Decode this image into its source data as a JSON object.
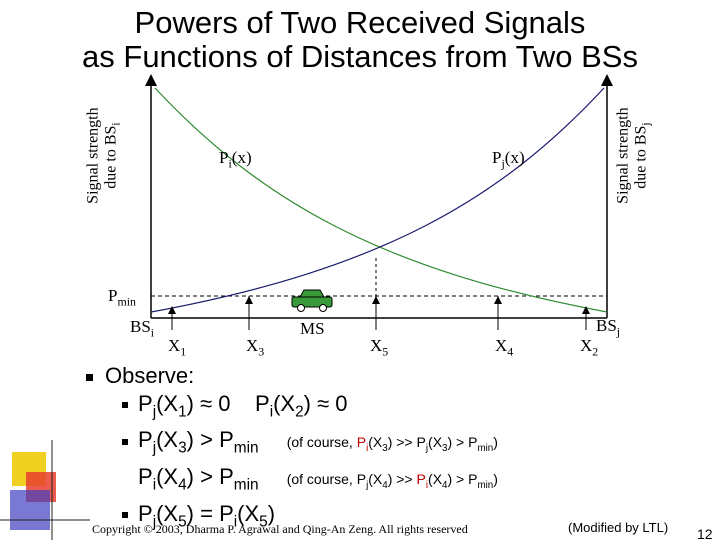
{
  "title_line1": "Powers of Two Received Signals",
  "title_line2": "as Functions of Distances from Two BSs",
  "left_axis_label_line1": "Signal strength",
  "left_axis_label_line2": "due to BS",
  "left_axis_label_sub": "i",
  "right_axis_label_line1": "Signal strength",
  "right_axis_label_line2": "due to BS",
  "right_axis_label_sub": "j",
  "curve_pi": "P",
  "curve_pi_sub": "i",
  "curve_pi_arg": "(x)",
  "curve_pj": "P",
  "curve_pj_sub": "j",
  "curve_pj_arg": "(x)",
  "pmin": "P",
  "pmin_sub": "min",
  "bsi": "BS",
  "bsi_sub": "i",
  "bsj": "BS",
  "bsj_sub": "j",
  "ms": "MS",
  "x1": "X",
  "x1_sub": "1",
  "x2": "X",
  "x2_sub": "2",
  "x3": "X",
  "x3_sub": "3",
  "x4": "X",
  "x4_sub": "4",
  "x5": "X",
  "x5_sub": "5",
  "observe": "Observe:",
  "b1_a": "P",
  "b1_a_sub": "j",
  "b1_b": "(X",
  "b1_b_sub": "1",
  "b1_c": ") ≈ 0",
  "b1_d": "P",
  "b1_d_sub": "i",
  "b1_e": "(X",
  "b1_e_sub": "2",
  "b1_f": ") ≈ 0",
  "b2_a": "P",
  "b2_a_sub": "j",
  "b2_b": "(X",
  "b2_b_sub": "3",
  "b2_c": ") > P",
  "b2_c_sub": "min",
  "b2_note": {
    "pre": "(of course, ",
    "p1": "P",
    "p1_sub": "i",
    "p1_x": "(X",
    "p1_xsub": "3",
    "mid": ") >> P",
    "p2_sub": "j",
    "p2_x": "(X",
    "p2_xsub": "3",
    "post": ") > P",
    "post_sub": "min",
    "end": ")"
  },
  "b3_a": "P",
  "b3_a_sub": "i",
  "b3_b": "(X",
  "b3_b_sub": "4",
  "b3_c": ") > P",
  "b3_c_sub": "min",
  "b3_note": {
    "pre": "(of course, ",
    "p1": "P",
    "p1_sub": "j",
    "p1_x": "(X",
    "p1_xsub": "4",
    "mid": ") >> ",
    "p2": "P",
    "p2_sub": "i",
    "p2_x": "(X",
    "p2_xsub": "4",
    "post": ") > P",
    "post_sub": "min",
    "end": ")"
  },
  "b4_a": "P",
  "b4_a_sub": "j",
  "b4_b": "(X",
  "b4_b_sub": "5",
  "b4_c": ") = P",
  "b4_d_sub": "i",
  "b4_e": "(X",
  "b4_e_sub": "5",
  "b4_f": ")",
  "footer": "Copyright © 2003, Dharma P. Agrawal and Qing-An Zeng. All rights reserved",
  "modified": "(Modified by LTL)",
  "page_number": "12",
  "colors": {
    "curve_i": "#2e8b2e",
    "curve_j": "#1a1a6e",
    "car": "#3a9a3a",
    "highlight": "#c00000"
  }
}
